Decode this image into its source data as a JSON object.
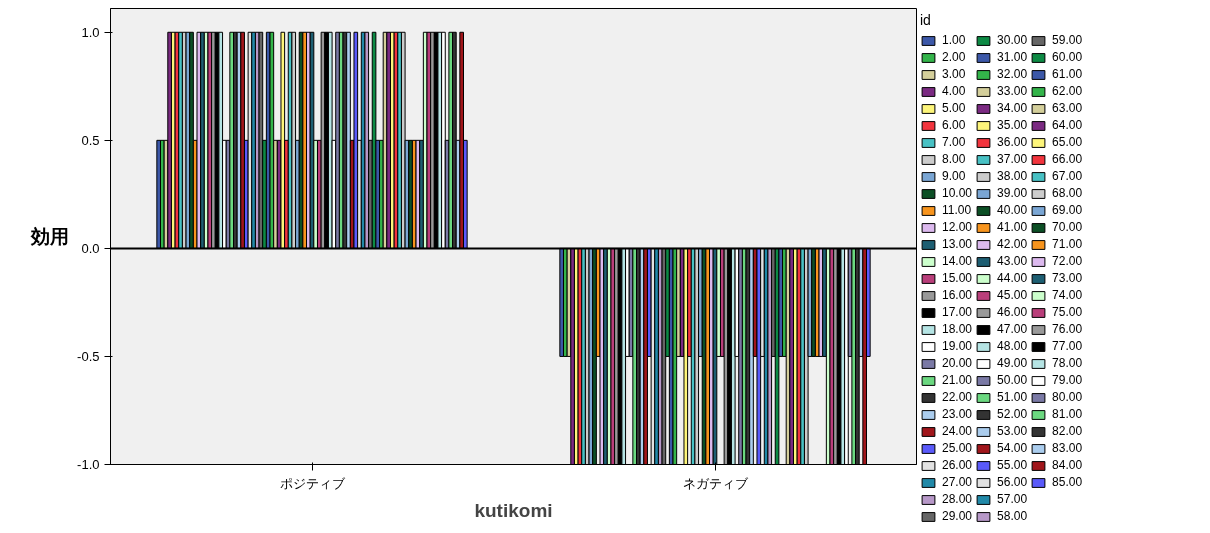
{
  "chart_data": {
    "type": "bar",
    "xlabel": "kutikomi",
    "ylabel": "効用",
    "legend_title": "id",
    "categories": [
      "ポジティブ",
      "ネガティブ"
    ],
    "ylim": [
      -1.0,
      1.11
    ],
    "yticks": [
      {
        "value": -1,
        "label": "-1.0"
      },
      {
        "value": -0.5,
        "label": "-0.5"
      },
      {
        "value": 0,
        "label": "0.0"
      },
      {
        "value": 0.5,
        "label": "0.5"
      },
      {
        "value": 1,
        "label": "1.0"
      }
    ],
    "legend": "right",
    "ref_lines": [
      {
        "axis": "y",
        "value": 0
      }
    ],
    "series": [
      {
        "name": "1.00",
        "color": "#3c58a8",
        "values": [
          0.5,
          -0.5
        ]
      },
      {
        "name": "2.00",
        "color": "#33b44a",
        "values": [
          0.5,
          -0.5
        ]
      },
      {
        "name": "3.00",
        "color": "#d4cf9b",
        "values": [
          0.5,
          -0.5
        ]
      },
      {
        "name": "4.00",
        "color": "#7b2a82",
        "values": [
          1,
          -1
        ]
      },
      {
        "name": "5.00",
        "color": "#fdf57a",
        "values": [
          1,
          -1
        ]
      },
      {
        "name": "6.00",
        "color": "#f2343d",
        "values": [
          1,
          -1
        ]
      },
      {
        "name": "7.00",
        "color": "#48c1c4",
        "values": [
          1,
          -1
        ]
      },
      {
        "name": "8.00",
        "color": "#cccccc",
        "values": [
          1,
          -1
        ]
      },
      {
        "name": "9.00",
        "color": "#7aa6d4",
        "values": [
          1,
          -1
        ]
      },
      {
        "name": "10.00",
        "color": "#0c4f25",
        "values": [
          1,
          -1
        ]
      },
      {
        "name": "11.00",
        "color": "#f7941d",
        "values": [
          0.5,
          -0.5
        ]
      },
      {
        "name": "12.00",
        "color": "#dcb9ee",
        "values": [
          1,
          -1
        ]
      },
      {
        "name": "13.00",
        "color": "#1d5e72",
        "values": [
          1,
          -1
        ]
      },
      {
        "name": "14.00",
        "color": "#ccffcc",
        "values": [
          1,
          -1
        ]
      },
      {
        "name": "15.00",
        "color": "#b93e7a",
        "values": [
          1,
          -1
        ]
      },
      {
        "name": "16.00",
        "color": "#999999",
        "values": [
          1,
          -1
        ]
      },
      {
        "name": "17.00",
        "color": "#000000",
        "values": [
          1,
          -1
        ]
      },
      {
        "name": "18.00",
        "color": "#b5e4e4",
        "values": [
          1,
          -1
        ]
      },
      {
        "name": "19.00",
        "color": "#ffffff",
        "values": [
          0.5,
          -0.5
        ]
      },
      {
        "name": "20.00",
        "color": "#7a79a5",
        "values": [
          0.5,
          -0.5
        ]
      },
      {
        "name": "21.00",
        "color": "#6bd880",
        "values": [
          1,
          -1
        ]
      },
      {
        "name": "22.00",
        "color": "#333333",
        "values": [
          1,
          -1
        ]
      },
      {
        "name": "23.00",
        "color": "#abcdee",
        "values": [
          1,
          -1
        ]
      },
      {
        "name": "24.00",
        "color": "#a0161b",
        "values": [
          1,
          -1
        ]
      },
      {
        "name": "25.00",
        "color": "#5a5afa",
        "values": [
          0.5,
          -0.5
        ]
      },
      {
        "name": "26.00",
        "color": "#e2e2e2",
        "values": [
          1,
          -1
        ]
      },
      {
        "name": "27.00",
        "color": "#2189a8",
        "values": [
          1,
          -1
        ]
      },
      {
        "name": "28.00",
        "color": "#b798c8",
        "values": [
          1,
          -1
        ]
      },
      {
        "name": "29.00",
        "color": "#666666",
        "values": [
          1,
          -1
        ]
      },
      {
        "name": "30.00",
        "color": "#0d8a44",
        "values": [
          0.5,
          -0.5
        ]
      },
      {
        "name": "31.00",
        "color": "#3c58a8",
        "values": [
          1,
          -1
        ]
      },
      {
        "name": "32.00",
        "color": "#33b44a",
        "values": [
          1,
          -1
        ]
      },
      {
        "name": "33.00",
        "color": "#d4cf9b",
        "values": [
          0.5,
          -0.5
        ]
      },
      {
        "name": "34.00",
        "color": "#7b2a82",
        "values": [
          0.5,
          -0.5
        ]
      },
      {
        "name": "35.00",
        "color": "#fdf57a",
        "values": [
          1,
          -1
        ]
      },
      {
        "name": "36.00",
        "color": "#f2343d",
        "values": [
          0.5,
          -0.5
        ]
      },
      {
        "name": "37.00",
        "color": "#48c1c4",
        "values": [
          1,
          -1
        ]
      },
      {
        "name": "38.00",
        "color": "#cccccc",
        "values": [
          1,
          -1
        ]
      },
      {
        "name": "39.00",
        "color": "#7aa6d4",
        "values": [
          0.5,
          -0.5
        ]
      },
      {
        "name": "40.00",
        "color": "#0c4f25",
        "values": [
          1,
          -1
        ]
      },
      {
        "name": "41.00",
        "color": "#f7941d",
        "values": [
          1,
          -1
        ]
      },
      {
        "name": "42.00",
        "color": "#dcb9ee",
        "values": [
          1,
          -1
        ]
      },
      {
        "name": "43.00",
        "color": "#1d5e72",
        "values": [
          1,
          -1
        ]
      },
      {
        "name": "44.00",
        "color": "#ccffcc",
        "values": [
          0.5,
          -0.5
        ]
      },
      {
        "name": "45.00",
        "color": "#b93e7a",
        "values": [
          0.5,
          -0.5
        ]
      },
      {
        "name": "46.00",
        "color": "#999999",
        "values": [
          1,
          -1
        ]
      },
      {
        "name": "47.00",
        "color": "#000000",
        "values": [
          1,
          -1
        ]
      },
      {
        "name": "48.00",
        "color": "#b5e4e4",
        "values": [
          1,
          -1
        ]
      },
      {
        "name": "49.00",
        "color": "#ffffff",
        "values": [
          0.5,
          -0.5
        ]
      },
      {
        "name": "50.00",
        "color": "#7a79a5",
        "values": [
          1,
          -1
        ]
      },
      {
        "name": "51.00",
        "color": "#6bd880",
        "values": [
          1,
          -1
        ]
      },
      {
        "name": "52.00",
        "color": "#333333",
        "values": [
          1,
          -1
        ]
      },
      {
        "name": "53.00",
        "color": "#abcdee",
        "values": [
          1,
          -1
        ]
      },
      {
        "name": "54.00",
        "color": "#a0161b",
        "values": [
          0.5,
          -0.5
        ]
      },
      {
        "name": "55.00",
        "color": "#5a5afa",
        "values": [
          1,
          -1
        ]
      },
      {
        "name": "56.00",
        "color": "#e2e2e2",
        "values": [
          0.5,
          -0.5
        ]
      },
      {
        "name": "57.00",
        "color": "#2189a8",
        "values": [
          1,
          -1
        ]
      },
      {
        "name": "58.00",
        "color": "#b798c8",
        "values": [
          1,
          -1
        ]
      },
      {
        "name": "59.00",
        "color": "#666666",
        "values": [
          0.5,
          -0.5
        ]
      },
      {
        "name": "60.00",
        "color": "#0d8a44",
        "values": [
          1,
          -1
        ]
      },
      {
        "name": "61.00",
        "color": "#3c58a8",
        "values": [
          0.5,
          -0.5
        ]
      },
      {
        "name": "62.00",
        "color": "#33b44a",
        "values": [
          0.5,
          -0.5
        ]
      },
      {
        "name": "63.00",
        "color": "#d4cf9b",
        "values": [
          1,
          -1
        ]
      },
      {
        "name": "64.00",
        "color": "#7b2a82",
        "values": [
          1,
          -1
        ]
      },
      {
        "name": "65.00",
        "color": "#fdf57a",
        "values": [
          1,
          -1
        ]
      },
      {
        "name": "66.00",
        "color": "#f2343d",
        "values": [
          1,
          -1
        ]
      },
      {
        "name": "67.00",
        "color": "#48c1c4",
        "values": [
          1,
          -1
        ]
      },
      {
        "name": "68.00",
        "color": "#cccccc",
        "values": [
          1,
          -1
        ]
      },
      {
        "name": "69.00",
        "color": "#7aa6d4",
        "values": [
          0.5,
          -0.5
        ]
      },
      {
        "name": "70.00",
        "color": "#0c4f25",
        "values": [
          0.5,
          -0.5
        ]
      },
      {
        "name": "71.00",
        "color": "#f7941d",
        "values": [
          0.5,
          -0.5
        ]
      },
      {
        "name": "72.00",
        "color": "#dcb9ee",
        "values": [
          0.5,
          -0.5
        ]
      },
      {
        "name": "73.00",
        "color": "#1d5e72",
        "values": [
          0.5,
          -0.5
        ]
      },
      {
        "name": "74.00",
        "color": "#ccffcc",
        "values": [
          1,
          -1
        ]
      },
      {
        "name": "75.00",
        "color": "#b93e7a",
        "values": [
          1,
          -1
        ]
      },
      {
        "name": "76.00",
        "color": "#999999",
        "values": [
          1,
          -1
        ]
      },
      {
        "name": "77.00",
        "color": "#000000",
        "values": [
          1,
          -1
        ]
      },
      {
        "name": "78.00",
        "color": "#b5e4e4",
        "values": [
          1,
          -1
        ]
      },
      {
        "name": "79.00",
        "color": "#ffffff",
        "values": [
          1,
          -1
        ]
      },
      {
        "name": "80.00",
        "color": "#7a79a5",
        "values": [
          0.5,
          -0.5
        ]
      },
      {
        "name": "81.00",
        "color": "#6bd880",
        "values": [
          1,
          -1
        ]
      },
      {
        "name": "82.00",
        "color": "#333333",
        "values": [
          1,
          -1
        ]
      },
      {
        "name": "83.00",
        "color": "#abcdee",
        "values": [
          0.5,
          -0.5
        ]
      },
      {
        "name": "84.00",
        "color": "#a0161b",
        "values": [
          1,
          -1
        ]
      },
      {
        "name": "85.00",
        "color": "#5a5afa",
        "values": [
          0.5,
          -0.5
        ]
      }
    ]
  }
}
